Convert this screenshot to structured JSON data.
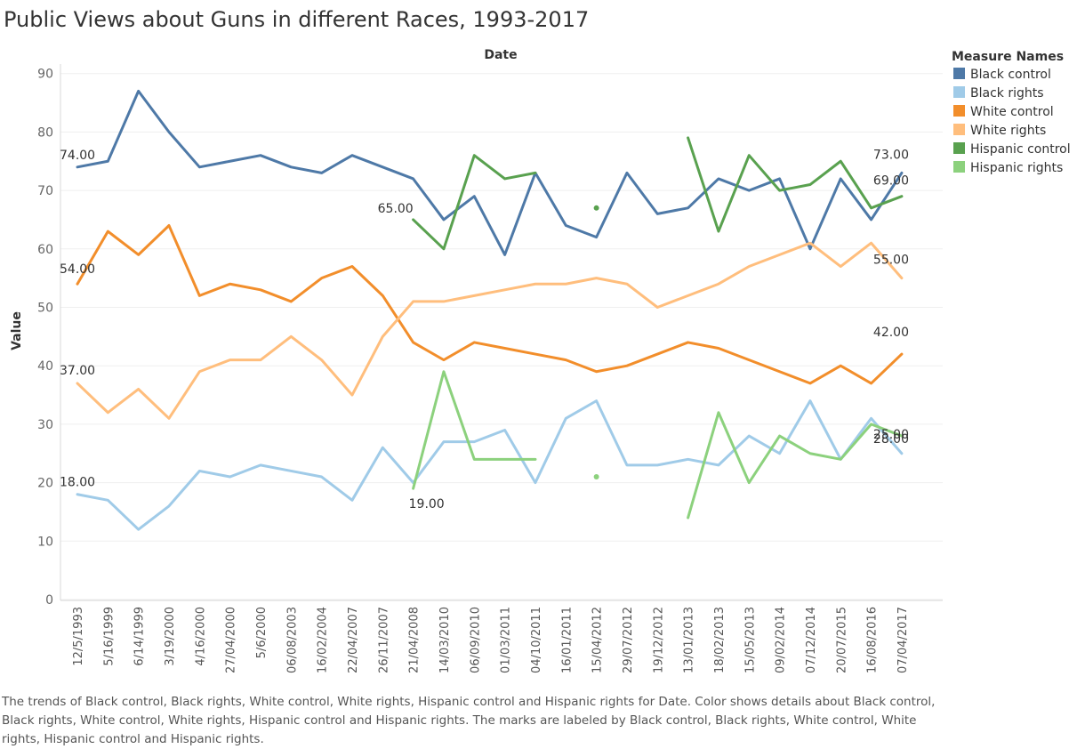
{
  "title": "Public Views about Guns in different Races, 1993-2017",
  "caption": "The trends of Black control, Black rights, White control, White rights, Hispanic control and Hispanic rights for Date.  Color shows details about Black control, Black rights, White control, White rights, Hispanic control and Hispanic rights.  The marks are labeled by Black control, Black rights, White control, White rights, Hispanic control and Hispanic rights.",
  "legend_title": "Measure Names",
  "chart_data": {
    "type": "line",
    "title": "Public Views about Guns in different Races, 1993-2017",
    "xlabel": "Date",
    "ylabel": "Value",
    "ylim": [
      0,
      90
    ],
    "yticks": [
      0,
      10,
      20,
      30,
      40,
      50,
      60,
      70,
      80,
      90
    ],
    "grid": true,
    "legend_position": "right",
    "x": [
      "12/5/1993",
      "5/16/1999",
      "6/14/1999",
      "3/19/2000",
      "4/16/2000",
      "27/04/2000",
      "5/6/2000",
      "06/08/2003",
      "16/02/2004",
      "22/04/2007",
      "26/11/2007",
      "21/04/2008",
      "14/03/2010",
      "06/09/2010",
      "01/03/2011",
      "04/10/2011",
      "16/01/2011",
      "15/04/2012",
      "29/07/2012",
      "19/12/2012",
      "13/01/2013",
      "18/02/2013",
      "15/05/2013",
      "09/02/2014",
      "07/12/2014",
      "20/07/2015",
      "16/08/2016",
      "07/04/2017"
    ],
    "series": [
      {
        "name": "Black control",
        "color": "#4e79a7",
        "values": [
          74,
          75,
          87,
          80,
          74,
          75,
          76,
          74,
          73,
          76,
          74,
          72,
          65,
          69,
          59,
          73,
          64,
          62,
          73,
          66,
          67,
          72,
          70,
          72,
          60,
          72,
          65,
          73
        ],
        "labels": [
          {
            "x": "12/5/1993",
            "text": "74.00"
          },
          {
            "x": "07/04/2017",
            "text": "73.00"
          }
        ]
      },
      {
        "name": "Black rights",
        "color": "#a0cbe8",
        "values": [
          18,
          17,
          12,
          16,
          22,
          21,
          23,
          22,
          21,
          17,
          26,
          20,
          27,
          27,
          29,
          20,
          31,
          34,
          23,
          23,
          24,
          23,
          28,
          25,
          34,
          24,
          31,
          25
        ],
        "labels": [
          {
            "x": "12/5/1993",
            "text": "18.00"
          },
          {
            "x": "07/04/2017",
            "text": "25.00"
          }
        ]
      },
      {
        "name": "White control",
        "color": "#f28e2b",
        "values": [
          54,
          63,
          59,
          64,
          52,
          54,
          53,
          51,
          55,
          57,
          52,
          44,
          41,
          44,
          43,
          42,
          41,
          39,
          40,
          42,
          44,
          43,
          41,
          39,
          37,
          40,
          37,
          42
        ],
        "labels": [
          {
            "x": "12/5/1993",
            "text": "54.00"
          },
          {
            "x": "07/04/2017",
            "text": "42.00"
          }
        ]
      },
      {
        "name": "White rights",
        "color": "#ffbe7d",
        "values": [
          37,
          32,
          36,
          31,
          39,
          41,
          41,
          45,
          41,
          35,
          45,
          51,
          51,
          52,
          53,
          54,
          54,
          55,
          54,
          50,
          52,
          54,
          57,
          59,
          61,
          57,
          61,
          55
        ],
        "labels": [
          {
            "x": "12/5/1993",
            "text": "37.00"
          },
          {
            "x": "07/04/2017",
            "text": "55.00"
          }
        ]
      },
      {
        "name": "Hispanic control",
        "color": "#59a14f",
        "values": [
          null,
          null,
          null,
          null,
          null,
          null,
          null,
          null,
          null,
          null,
          null,
          65,
          60,
          76,
          72,
          73,
          null,
          67,
          null,
          null,
          79,
          63,
          76,
          70,
          71,
          75,
          67,
          69
        ],
        "labels": [
          {
            "x": "21/04/2008",
            "text": "65.00"
          },
          {
            "x": "07/04/2017",
            "text": "69.00"
          }
        ]
      },
      {
        "name": "Hispanic rights",
        "color": "#8cd17d",
        "values": [
          null,
          null,
          null,
          null,
          null,
          null,
          null,
          null,
          null,
          null,
          null,
          19,
          39,
          24,
          24,
          24,
          null,
          21,
          null,
          null,
          14,
          32,
          20,
          28,
          25,
          24,
          30,
          28
        ],
        "labels": [
          {
            "x": "21/04/2008",
            "text": "19.00"
          },
          {
            "x": "07/04/2017",
            "text": "28.00"
          }
        ]
      }
    ]
  }
}
